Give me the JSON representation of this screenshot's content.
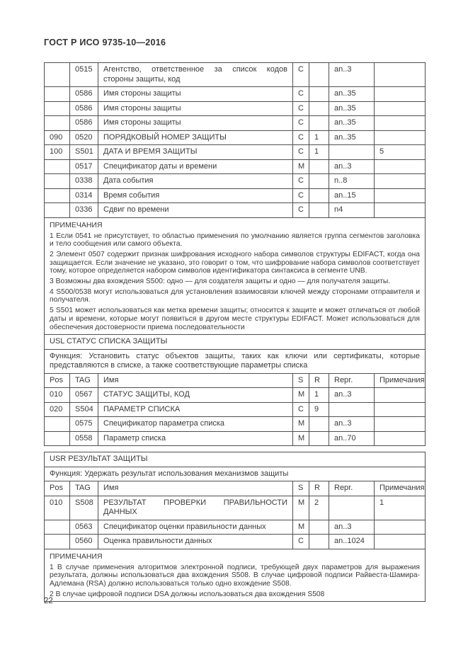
{
  "page": {
    "header": "ГОСТ Р ИСО 9735-10—2016",
    "page_number": "22"
  },
  "columns": [
    "Pos",
    "TAG",
    "Имя",
    "S",
    "R",
    "Repr.",
    "Примечания"
  ],
  "segment_usd": {
    "rows": [
      [
        "",
        "0515",
        "Агентство, ответственное за список кодов стороны защиты, код",
        "C",
        "",
        "an..3",
        ""
      ],
      [
        "",
        "0586",
        "Имя стороны защиты",
        "C",
        "",
        "an..35",
        ""
      ],
      [
        "",
        "0586",
        "Имя стороны защиты",
        "C",
        "",
        "an..35",
        ""
      ],
      [
        "",
        "0586",
        "Имя стороны защиты",
        "C",
        "",
        "an..35",
        ""
      ],
      [
        "090",
        "0520",
        "ПОРЯДКОВЫЙ НОМЕР ЗАЩИТЫ",
        "C",
        "1",
        "an..35",
        ""
      ],
      [
        "100",
        "S501",
        "ДАТА И ВРЕМЯ ЗАЩИТЫ",
        "C",
        "1",
        "",
        "5"
      ],
      [
        "",
        "0517",
        "Спецификатор даты и времени",
        "M",
        "",
        "an..3",
        ""
      ],
      [
        "",
        "0338",
        "Дата события",
        "C",
        "",
        "n..8",
        ""
      ],
      [
        "",
        "0314",
        "Время события",
        "C",
        "",
        "an..15",
        ""
      ],
      [
        "",
        "0336",
        "Сдвиг по времени",
        "C",
        "",
        "n4",
        ""
      ]
    ]
  },
  "notes_usd": {
    "title": "ПРИМЕЧАНИЯ",
    "items": [
      "1 Если 0541 не присутствует, то областью применения по умолчанию является группа сегментов заголовка и тело сообщения или самого объекта.",
      "2 Элемент 0507 содержит признак шифрования исходного набора символов структуры EDIFACT, когда она защищается. Если значение не указано, это говорит о том, что шифрование набора символов соответствует тому, которое определяется набором символов идентификатора синтаксиса в сегменте UNB.",
      "3 Возможны два вхождения S500: одно — для создателя защиты и одно — для получателя защиты.",
      "4 S500/0538 могут использоваться для установления взаимосвязи ключей между сторонами отправителя и получателя.",
      "5 S501 может использоваться как метка времени защиты; относится к защите и может отличаться от любой даты и времени, которые могут появиться в другом месте структуры EDIFACT. Может использоваться для обеспечения достоверности приема последовательности"
    ]
  },
  "usl": {
    "title": "USL СТАТУС СПИСКА ЗАЩИТЫ",
    "function_text": "Функция: Установить статус объектов защиты, таких как ключи или сертификаты, которые представляются в списке, а также соответствующие параметры списка",
    "rows": [
      [
        "010",
        "0567",
        "СТАТУС ЗАЩИТЫ, КОД",
        "M",
        "1",
        "an..3",
        ""
      ],
      [
        "020",
        "S504",
        "ПАРАМЕТР СПИСКА",
        "C",
        "9",
        "",
        ""
      ],
      [
        "",
        "0575",
        "Спецификатор параметра списка",
        "M",
        "",
        "an..3",
        ""
      ],
      [
        "",
        "0558",
        "Параметр списка",
        "M",
        "",
        "an..70",
        ""
      ]
    ]
  },
  "usr": {
    "title": "USR РЕЗУЛЬТАТ ЗАЩИТЫ",
    "function_text": "Функция: Удержать результат использования механизмов защиты",
    "rows": [
      [
        "010",
        "S508",
        "РЕЗУЛЬТАТ ПРОВЕРКИ ПРАВИЛЬНОСТИ ДАННЫХ",
        "M",
        "2",
        "",
        "1"
      ],
      [
        "",
        "0563",
        "Спецификатор оценки правильности данных",
        "M",
        "",
        "an..3",
        ""
      ],
      [
        "",
        "0560",
        "Оценка правильности данных",
        "C",
        "",
        "an..1024",
        ""
      ]
    ]
  },
  "notes_usr": {
    "title": "ПРИМЕЧАНИЯ",
    "items": [
      "1 В случае применения алгоритмов электронной подписи, требующей двух параметров для выражения результата, должны использоваться два вхождения S508. В случае цифровой подписи Райвеста-Шамира-Адлемана (RSA) должно использоваться только одно вхождение S508.",
      "2 В случае цифровой подписи DSA должны использоваться два вхождения S508"
    ]
  }
}
